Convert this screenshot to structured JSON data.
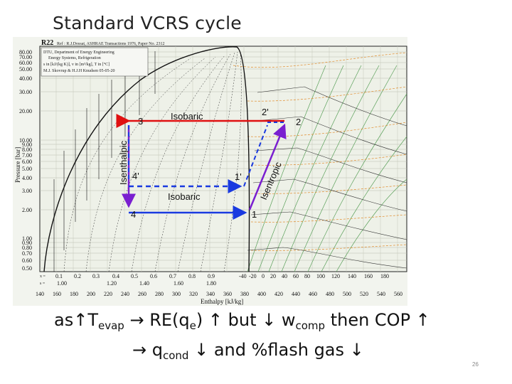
{
  "title": "Standard VCRS cycle",
  "chart_header": {
    "refrigerant": "R22",
    "ref": "Ref : R.J.Dossat, ASHRAE Transactions 1976, Paper No. 2312",
    "info1": "DTU, Department of Energy Engineering",
    "info2": "Energy Systems, Refrigeration",
    "info3": "s in [kJ/(kg K)], v in [m³/kg], T in [°C]",
    "info4": "M.J. Skovrup & H.J.H Knudsen  05-05-20"
  },
  "y_axis_label": "Pressure [bar]",
  "y_ticks": [
    "80.00",
    "70.00",
    "60.00",
    "50.00",
    "40.00",
    "30.00",
    "20.00",
    "10.00",
    "9.00",
    "8.00",
    "7.00",
    "6.00",
    "5.00",
    "4.00",
    "3.00",
    "2.00",
    "1.00",
    "0.90",
    "0.80",
    "0.70",
    "0.60",
    "0.50"
  ],
  "x_axis_label": "Enthalpy [kJ/kg]",
  "x_ticks": [
    "140",
    "160",
    "180",
    "200",
    "220",
    "240",
    "260",
    "280",
    "300",
    "320",
    "340",
    "360",
    "380",
    "400",
    "420",
    "440",
    "460",
    "480",
    "500",
    "520",
    "540",
    "560"
  ],
  "quality_row": {
    "label": "x =",
    "values": [
      "0.1",
      "0.2",
      "0.3",
      "0.4",
      "0.5",
      "0.6",
      "0.7",
      "0.8",
      "0.9"
    ]
  },
  "entropy_row": {
    "label": "s =",
    "values": [
      "1.00",
      "1.20",
      "1.40",
      "1.60",
      "1.80"
    ]
  },
  "temp_row": [
    "-40",
    "-20",
    "0",
    "20",
    "40",
    "60",
    "80",
    "100",
    "120",
    "140",
    "160",
    "180"
  ],
  "points": {
    "p1": "1",
    "p1p": "1'",
    "p2": "2",
    "p2p": "2'",
    "p3": "3",
    "p4": "4",
    "p4p": "4'"
  },
  "process_labels": {
    "isobaric_top": "Isobaric",
    "isobaric_bottom": "Isobaric",
    "isenthalpic": "Isenthalpic",
    "isentropic": "Isentropic"
  },
  "colors": {
    "red": "#e01010",
    "purple": "#7a1fd0",
    "blue": "#1a3ae0"
  },
  "bottom_text": {
    "line1_a": "as",
    "arrow_up": "↑",
    "line1_b": "T",
    "evap_sub": "evap",
    "arrow_right": "→",
    "line1_c": " RE(q",
    "e_sub": "e",
    "line1_d": ") ",
    "line1_e": " but ",
    "arrow_down": "↓",
    "line1_f": " w",
    "comp_sub": "comp",
    "line1_g": " then COP ",
    "line2_a": " q",
    "cond_sub": "cond",
    "line2_b": " and %flash gas "
  },
  "slide_number": "26"
}
